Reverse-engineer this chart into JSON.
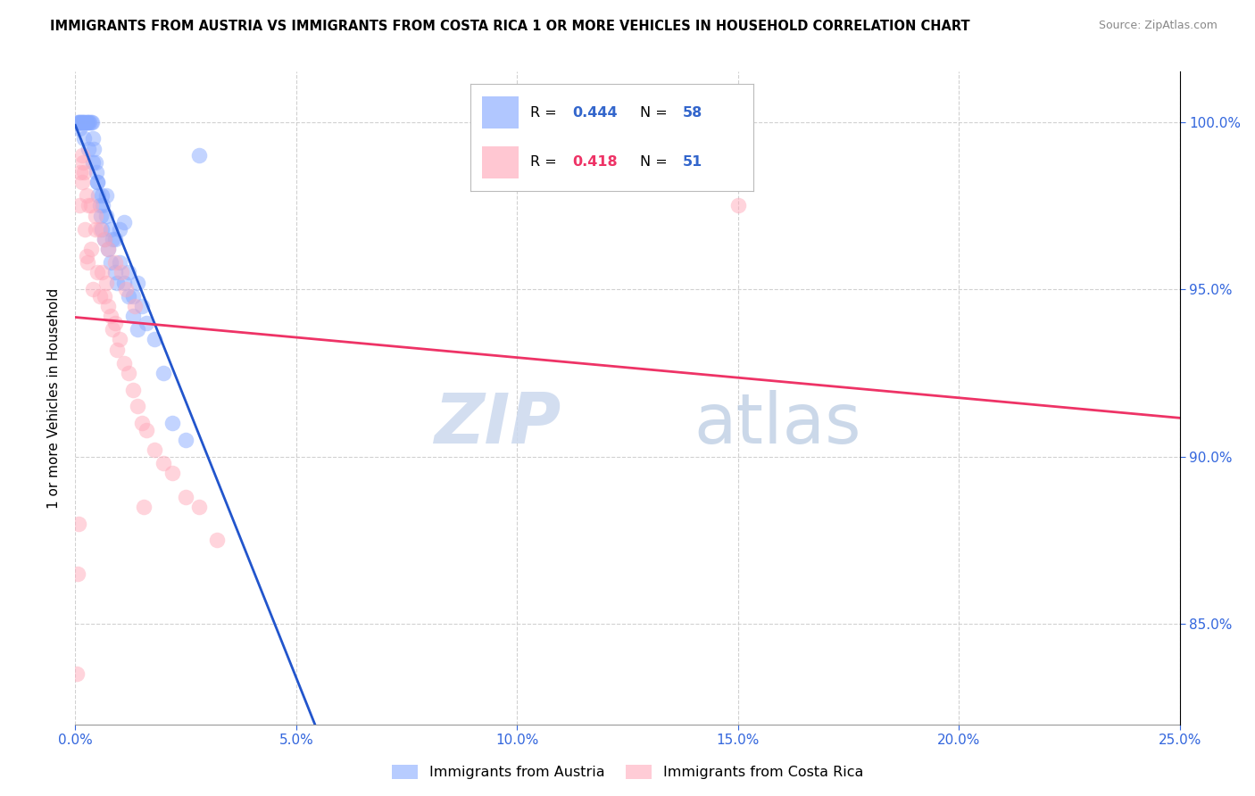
{
  "title": "IMMIGRANTS FROM AUSTRIA VS IMMIGRANTS FROM COSTA RICA 1 OR MORE VEHICLES IN HOUSEHOLD CORRELATION CHART",
  "source": "Source: ZipAtlas.com",
  "ylabel": "1 or more Vehicles in Household",
  "xlim": [
    0.0,
    25.0
  ],
  "ylim": [
    82.0,
    101.5
  ],
  "xticks": [
    0.0,
    5.0,
    10.0,
    15.0,
    20.0,
    25.0
  ],
  "xticklabels": [
    "0.0%",
    "5.0%",
    "10.0%",
    "15.0%",
    "20.0%",
    "25.0%"
  ],
  "yticks_right": [
    85.0,
    90.0,
    95.0,
    100.0
  ],
  "yticklabels_right": [
    "85.0%",
    "90.0%",
    "95.0%",
    "100.0%"
  ],
  "grid_color": "#cccccc",
  "austria_scatter_color": "#88aaff",
  "cr_scatter_color": "#ffaabb",
  "austria_line_color": "#2255cc",
  "cr_line_color": "#ee3366",
  "austria_R": 0.444,
  "austria_N": 58,
  "cr_R": 0.418,
  "cr_N": 51,
  "legend_label_austria": "Immigrants from Austria",
  "legend_label_cr": "Immigrants from Costa Rica",
  "austria_x": [
    0.05,
    0.08,
    0.1,
    0.12,
    0.14,
    0.16,
    0.18,
    0.2,
    0.22,
    0.25,
    0.28,
    0.3,
    0.32,
    0.35,
    0.38,
    0.4,
    0.42,
    0.45,
    0.48,
    0.5,
    0.52,
    0.55,
    0.58,
    0.6,
    0.62,
    0.65,
    0.7,
    0.75,
    0.8,
    0.85,
    0.9,
    0.95,
    1.0,
    1.1,
    1.2,
    1.3,
    1.4,
    1.5,
    1.6,
    1.8,
    2.0,
    2.2,
    2.5,
    0.1,
    0.2,
    0.3,
    0.4,
    0.5,
    0.6,
    0.7,
    0.8,
    0.9,
    1.0,
    1.1,
    1.2,
    1.3,
    1.4,
    2.8
  ],
  "austria_y": [
    100.0,
    100.0,
    100.0,
    100.0,
    100.0,
    100.0,
    100.0,
    100.0,
    100.0,
    100.0,
    100.0,
    100.0,
    100.0,
    100.0,
    100.0,
    99.5,
    99.2,
    98.8,
    98.5,
    98.2,
    97.8,
    97.5,
    97.2,
    96.8,
    97.5,
    96.5,
    97.8,
    96.2,
    95.8,
    96.5,
    95.5,
    95.2,
    96.8,
    97.0,
    95.5,
    94.8,
    95.2,
    94.5,
    94.0,
    93.5,
    92.5,
    91.0,
    90.5,
    99.8,
    99.5,
    99.2,
    98.8,
    98.2,
    97.8,
    97.2,
    96.8,
    96.5,
    95.8,
    95.2,
    94.8,
    94.2,
    93.8,
    99.0
  ],
  "cr_x": [
    0.03,
    0.06,
    0.08,
    0.1,
    0.12,
    0.15,
    0.18,
    0.2,
    0.22,
    0.25,
    0.28,
    0.3,
    0.35,
    0.4,
    0.45,
    0.5,
    0.55,
    0.6,
    0.65,
    0.7,
    0.75,
    0.8,
    0.85,
    0.9,
    0.95,
    1.0,
    1.1,
    1.2,
    1.3,
    1.4,
    1.5,
    1.6,
    1.8,
    2.0,
    2.2,
    2.5,
    2.8,
    3.2,
    0.15,
    0.25,
    0.35,
    0.45,
    0.55,
    0.65,
    0.75,
    0.9,
    1.05,
    1.15,
    1.35,
    1.55,
    15.0
  ],
  "cr_y": [
    83.5,
    86.5,
    88.0,
    97.5,
    98.5,
    99.0,
    98.8,
    98.5,
    96.8,
    96.0,
    95.8,
    97.5,
    96.2,
    95.0,
    96.8,
    95.5,
    94.8,
    95.5,
    94.8,
    95.2,
    94.5,
    94.2,
    93.8,
    94.0,
    93.2,
    93.5,
    92.8,
    92.5,
    92.0,
    91.5,
    91.0,
    90.8,
    90.2,
    89.8,
    89.5,
    88.8,
    88.5,
    87.5,
    98.2,
    97.8,
    97.5,
    97.2,
    96.8,
    96.5,
    96.2,
    95.8,
    95.5,
    95.0,
    94.5,
    88.5,
    97.5
  ]
}
